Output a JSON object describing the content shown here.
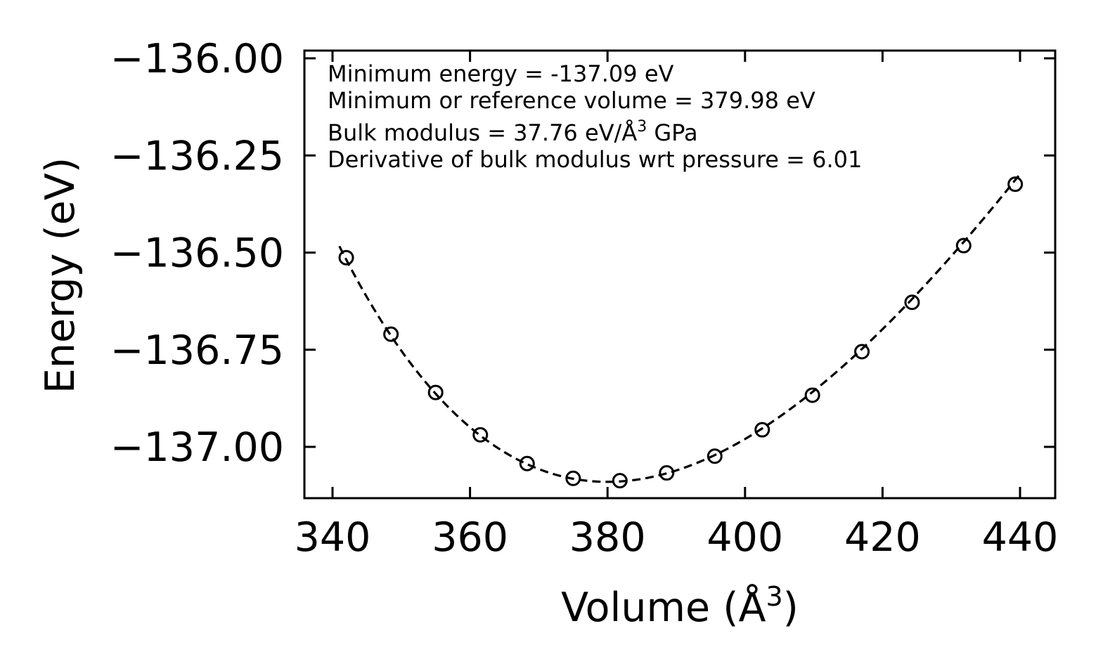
{
  "chart_data": {
    "type": "scatter",
    "title": "",
    "xlabel": "Volume (Å³)",
    "xlabel_parts": {
      "main": "Volume (Å",
      "sup": "3",
      "tail": ")"
    },
    "ylabel": "Energy (eV)",
    "xlim": [
      336,
      446
    ],
    "ylim": [
      -137.13,
      -135.97
    ],
    "xticks": [
      340,
      360,
      380,
      400,
      420,
      440
    ],
    "xtick_labels": [
      "340",
      "360",
      "380",
      "400",
      "420",
      "440"
    ],
    "yticks": [
      -136.0,
      -136.25,
      -136.5,
      -136.75,
      -137.0
    ],
    "ytick_labels": [
      "−136.00",
      "−136.25",
      "−136.50",
      "−136.75",
      "−137.00"
    ],
    "grid": false,
    "annotations": {
      "min_energy": "Minimum energy = -137.09 eV",
      "min_volume": "Minimum or reference volume = 379.98 eV",
      "bulk_modulus_prefix": "Bulk modulus = 37.76 eV/Å",
      "bulk_modulus_sup": "3",
      "bulk_modulus_suffix": " GPa",
      "bulk_modulus_derivative": "Derivative of bulk modulus wrt pressure = 6.01"
    },
    "series": [
      {
        "name": "data points",
        "marker": "open-circle",
        "x": [
          342.0,
          348.5,
          355.0,
          361.5,
          368.3,
          375.0,
          381.8,
          388.6,
          395.6,
          402.5,
          409.8,
          417.0,
          424.3,
          431.8,
          439.3
        ],
        "y": [
          -136.513,
          -136.71,
          -136.86,
          -136.969,
          -137.043,
          -137.081,
          -137.087,
          -137.067,
          -137.024,
          -136.956,
          -136.867,
          -136.755,
          -136.628,
          -136.482,
          -136.324
        ]
      },
      {
        "name": "Birch–Murnaghan fit",
        "style": "dashed",
        "E0": -137.09,
        "V0": 379.98,
        "B0": 37.76,
        "B0_prime": 6.01,
        "x_range": [
          341.0,
          439.8
        ]
      }
    ],
    "colors": {
      "line": "#000000",
      "marker": "#000000",
      "background": "#ffffff"
    }
  }
}
